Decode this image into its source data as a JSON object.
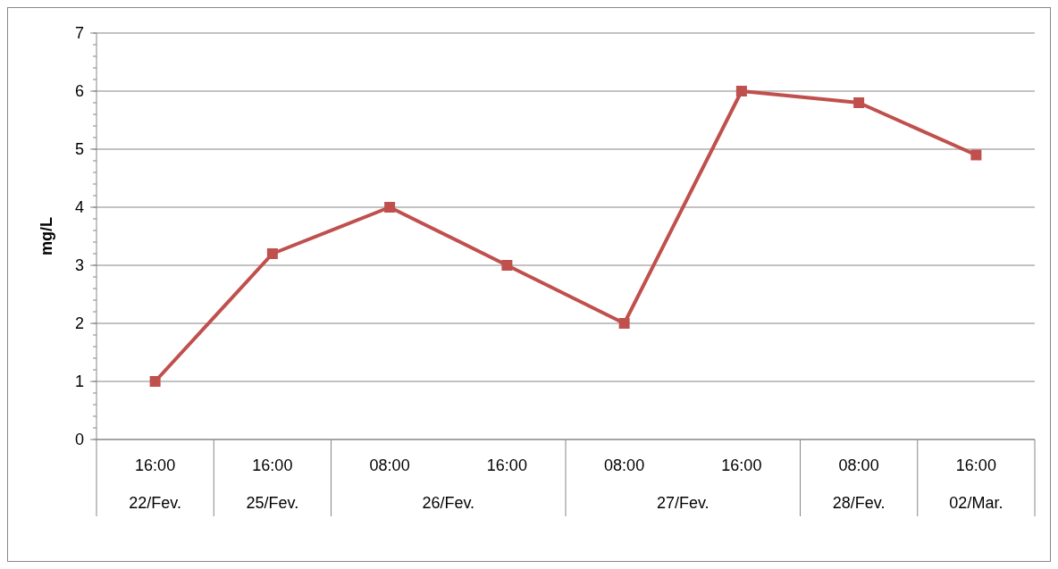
{
  "chart_data": {
    "type": "line",
    "ylabel": "mg/L",
    "categories": [
      "16:00",
      "16:00",
      "08:00",
      "16:00",
      "08:00",
      "16:00",
      "08:00",
      "16:00"
    ],
    "annotations": [
      "22/Fev.",
      "25/Fev.",
      "26/Fev.",
      "27/Fev.",
      "28/Fev.",
      "02/Mar."
    ],
    "series": [
      {
        "color": "#c0504d",
        "values": [
          1,
          3.2,
          4,
          3,
          2,
          6,
          5.8,
          4.9
        ]
      }
    ],
    "ylim": [
      0,
      7
    ],
    "yticks": [
      0,
      1,
      2,
      3,
      4,
      5,
      6,
      7
    ],
    "grid": "y",
    "marker": "square",
    "line_style": "solid"
  }
}
